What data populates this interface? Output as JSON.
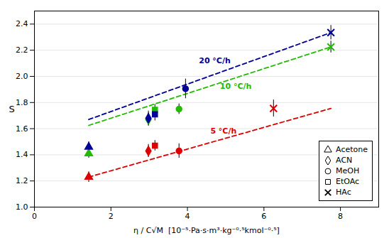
{
  "chart_data": {
    "type": "scatter",
    "x_label": "η / C√M  [10⁻⁵·Pa·s·m³·kg⁻⁰·⁵kmol⁻⁰·⁵]",
    "y_label": "S",
    "xlim": [
      0,
      9
    ],
    "ylim": [
      1.0,
      2.5
    ],
    "xticks": [
      0,
      2,
      4,
      6,
      8
    ],
    "yticks": [
      {
        "value": 1.0,
        "label": "1.0"
      },
      1.2,
      1.4,
      1.6,
      1.8,
      {
        "value": 2.0,
        "label": "2.0"
      },
      2.2,
      2.4
    ],
    "grid": "y",
    "legend": "lower right",
    "series": [
      {
        "name": "Acetone",
        "marker": "triangle",
        "x": [
          1.42,
          1.42,
          1.42
        ],
        "values": [
          1.23,
          1.41,
          1.46
        ],
        "errors": [
          0.04,
          0.035,
          0.04
        ],
        "colors": [
          "#dd0000",
          "#22bb00",
          "#000099"
        ]
      },
      {
        "name": "ACN",
        "marker": "diamond",
        "x": [
          2.98,
          2.98,
          2.98
        ],
        "values": [
          1.43,
          1.67,
          1.68
        ],
        "errors": [
          0.05,
          0.05,
          0.055
        ],
        "colors": [
          "#dd0000",
          "#22bb00",
          "#000099"
        ]
      },
      {
        "name": "MeOH",
        "marker": "circle",
        "x": [
          3.78,
          3.78,
          3.95
        ],
        "values": [
          1.43,
          1.75,
          1.905
        ],
        "errors": [
          0.055,
          0.04,
          0.075
        ],
        "colors": [
          "#dd0000",
          "#22bb00",
          "#000099"
        ]
      },
      {
        "name": "EtOAc",
        "marker": "square",
        "x": [
          3.15,
          3.15,
          3.15
        ],
        "values": [
          1.47,
          1.745,
          1.71
        ],
        "errors": [
          0.04,
          0.04,
          0.05
        ],
        "colors": [
          "#dd0000",
          "#22bb00",
          "#000099"
        ]
      },
      {
        "name": "HAc",
        "marker": "x",
        "x": [
          6.25,
          7.75,
          7.75
        ],
        "values": [
          1.755,
          2.225,
          2.335
        ],
        "errors": [
          0.065,
          0.045,
          0.055
        ],
        "colors": [
          "#dd0000",
          "#22bb00",
          "#000099"
        ]
      }
    ],
    "lines": [
      {
        "color": "#dd0000",
        "line_style": "dashed",
        "x": [
          1.42,
          7.75
        ],
        "values": [
          1.23,
          1.755
        ]
      },
      {
        "color": "#22bb00",
        "line_style": "dashed",
        "x": [
          1.42,
          7.75
        ],
        "values": [
          1.625,
          2.225
        ]
      },
      {
        "color": "#000099",
        "line_style": "dashed",
        "x": [
          1.42,
          7.75
        ],
        "values": [
          1.67,
          2.335
        ]
      }
    ],
    "annotations": [
      {
        "text": "20 °C/h",
        "x": 4.3,
        "y": 2.1,
        "color": "#000099"
      },
      {
        "text": "10 °C/h",
        "x": 4.85,
        "y": 1.905,
        "color": "#22bb00"
      },
      {
        "text": "5 °C/h",
        "x": 4.6,
        "y": 1.565,
        "color": "#dd0000"
      }
    ]
  }
}
